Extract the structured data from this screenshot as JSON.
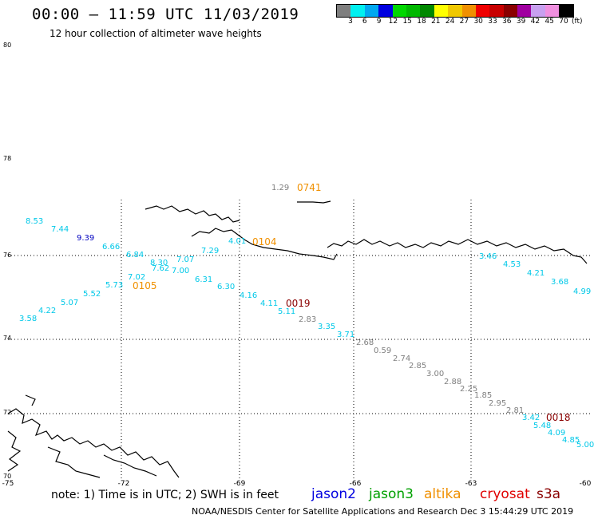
{
  "title": "00:00 – 11:59 UTC 11/03/2019",
  "subtitle": "12 hour collection of altimeter wave heights",
  "colorbar": {
    "colors": [
      "#7f7f7f",
      "#00f0f0",
      "#00a8f0",
      "#0000e0",
      "#00d800",
      "#00b800",
      "#008800",
      "#ffff00",
      "#f0c800",
      "#f09000",
      "#f00000",
      "#c80000",
      "#8a0000",
      "#a000a0",
      "#c8a0f0",
      "#f090e0",
      "#000000"
    ],
    "labels": [
      "3",
      "6",
      "9",
      "12",
      "15",
      "18",
      "21",
      "24",
      "27",
      "30",
      "33",
      "36",
      "39",
      "42",
      "45",
      "70"
    ],
    "unit": "(ft)"
  },
  "lat_labels": [
    "80",
    "78",
    "76",
    "74",
    "72",
    "70"
  ],
  "lon_labels": [
    "-75",
    "-72",
    "-69",
    "-66",
    "-63",
    "-60"
  ],
  "wave_heights": [
    {
      "v": "8.53",
      "c": "#00c8e8"
    },
    {
      "v": "7.44",
      "c": "#00c8e8"
    },
    {
      "v": "9.39",
      "c": "#0000c0"
    },
    {
      "v": "6.66",
      "c": "#00c8e8"
    },
    {
      "v": "6.84",
      "c": "#00c8e8"
    },
    {
      "v": "8.30",
      "c": "#00c8e8"
    },
    {
      "v": "7.07",
      "c": "#00c8e8"
    },
    {
      "v": "7.29",
      "c": "#00c8e8"
    },
    {
      "v": "7.62",
      "c": "#00c8e8"
    },
    {
      "v": "7.00",
      "c": "#00c8e8"
    },
    {
      "v": "7.02",
      "c": "#00c8e8"
    },
    {
      "v": "6.31",
      "c": "#00c8e8"
    },
    {
      "v": "5.73",
      "c": "#00c8e8"
    },
    {
      "v": "6.30",
      "c": "#00c8e8"
    },
    {
      "v": "5.52",
      "c": "#00c8e8"
    },
    {
      "v": "5.07",
      "c": "#00c8e8"
    },
    {
      "v": "4.22",
      "c": "#00c8e8"
    },
    {
      "v": "3.58",
      "c": "#00c8e8"
    },
    {
      "v": "1.29",
      "c": "#7f7f7f"
    },
    {
      "v": "4.01",
      "c": "#00c8e8"
    },
    {
      "v": "4.16",
      "c": "#00c8e8"
    },
    {
      "v": "4.11",
      "c": "#00c8e8"
    },
    {
      "v": "5.11",
      "c": "#00c8e8"
    },
    {
      "v": "2.83",
      "c": "#7f7f7f"
    },
    {
      "v": "3.35",
      "c": "#00c8e8"
    },
    {
      "v": "3.71",
      "c": "#00c8e8"
    },
    {
      "v": "2.68",
      "c": "#7f7f7f"
    },
    {
      "v": "0.59",
      "c": "#7f7f7f"
    },
    {
      "v": "2.74",
      "c": "#7f7f7f"
    },
    {
      "v": "2.85",
      "c": "#7f7f7f"
    },
    {
      "v": "3.00",
      "c": "#7f7f7f"
    },
    {
      "v": "2.88",
      "c": "#7f7f7f"
    },
    {
      "v": "2.25",
      "c": "#7f7f7f"
    },
    {
      "v": "1.85",
      "c": "#7f7f7f"
    },
    {
      "v": "2.95",
      "c": "#7f7f7f"
    },
    {
      "v": "2.81",
      "c": "#7f7f7f"
    },
    {
      "v": "3.42",
      "c": "#00c8e8"
    },
    {
      "v": "5.48",
      "c": "#00c8e8"
    },
    {
      "v": "4.09",
      "c": "#00c8e8"
    },
    {
      "v": "4.85",
      "c": "#00c8e8"
    },
    {
      "v": "5.00",
      "c": "#00c8e8"
    },
    {
      "v": "3.46",
      "c": "#00c8e8"
    },
    {
      "v": "4.53",
      "c": "#00c8e8"
    },
    {
      "v": "4.21",
      "c": "#00c8e8"
    },
    {
      "v": "3.68",
      "c": "#00c8e8"
    },
    {
      "v": "4.99",
      "c": "#00c8e8"
    }
  ],
  "time_labels": [
    {
      "v": "0741",
      "c": "#f09000"
    },
    {
      "v": "0104",
      "c": "#f09000"
    },
    {
      "v": "0105",
      "c": "#f09000"
    },
    {
      "v": "0019",
      "c": "#8a0000"
    },
    {
      "v": "0018",
      "c": "#8a0000"
    }
  ],
  "note": "note: 1) Time is in UTC; 2) SWH is in feet",
  "legend": [
    {
      "name": "jason2",
      "color": "#0000e0"
    },
    {
      "name": "jason3",
      "color": "#00a000"
    },
    {
      "name": "altika",
      "color": "#f09000"
    },
    {
      "name": "cryosat",
      "color": "#e00000"
    },
    {
      "name": "s3a",
      "color": "#8a0000"
    }
  ],
  "credit": "NOAA/NESDIS Center for Satellite Applications and Research     Dec  3 15:44:29 UTC 2019"
}
